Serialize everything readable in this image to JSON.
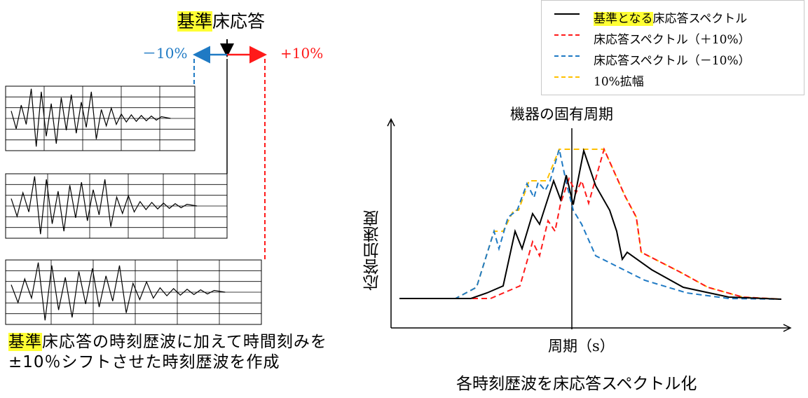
{
  "left": {
    "title_highlight": "基準",
    "title_rest": "床応答",
    "minus_label": "－10%",
    "plus_label": "+10%",
    "caption_highlight": "基準",
    "caption_rest": "床応答の時刻歴波に加えて時間刻みを±10％シフトさせた時刻歴波を作成"
  },
  "legend": {
    "items": [
      {
        "label_highlight": "基準となる",
        "label_rest": "床応答スペクトル",
        "style": "solid",
        "color": "#000000"
      },
      {
        "label_highlight": "",
        "label_rest": "床応答スペクトル（＋10%）",
        "style": "dashed",
        "color": "#ff1a1a"
      },
      {
        "label_highlight": "",
        "label_rest": "床応答スペクトル（－10%）",
        "style": "dashed",
        "color": "#1f7ac4"
      },
      {
        "label_highlight": "",
        "label_rest": "10%拡幅",
        "style": "dashed",
        "color": "#ffc000"
      }
    ]
  },
  "chart": {
    "period_marker_label": "機器の固有周期",
    "ylabel": "応答加速度",
    "xlabel": "周期（s）",
    "caption": "各時刻歴波を床応答スペクトル化"
  },
  "colors": {
    "highlight": "#ffff33",
    "blue": "#1f7ac4",
    "red": "#ff1a1a",
    "orange": "#ffc000"
  }
}
